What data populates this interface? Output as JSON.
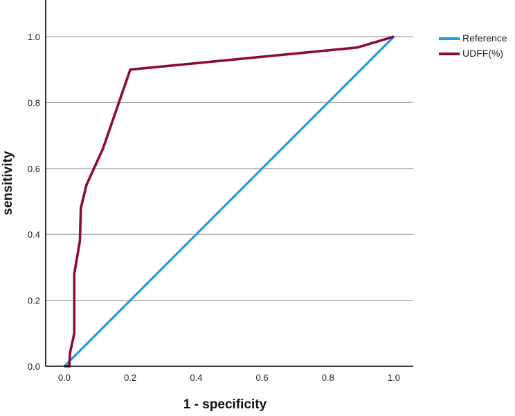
{
  "chart_data": {
    "type": "line",
    "title": "",
    "xlabel": "1 - specificity",
    "ylabel": "sensitivity",
    "xlim": [
      0.0,
      1.0
    ],
    "ylim": [
      0.0,
      1.0
    ],
    "xticks": [
      "0.0",
      "0.2",
      "0.4",
      "0.6",
      "0.8",
      "1.0"
    ],
    "yticks": [
      "0.0",
      "0.2",
      "0.4",
      "0.6",
      "0.8",
      "1.0"
    ],
    "grid": {
      "horizontal": true,
      "vertical": false
    },
    "legend_position": "upper right, outside plot",
    "series": [
      {
        "name": "Reference",
        "color": "#1e9be8",
        "x": [
          0.0,
          1.0
        ],
        "y": [
          0.0,
          1.0
        ]
      },
      {
        "name": "UDFF(%)",
        "color": "#8c0a3a",
        "x": [
          0.0,
          0.015,
          0.017,
          0.03,
          0.03,
          0.047,
          0.05,
          0.067,
          0.117,
          0.2,
          0.889,
          1.0
        ],
        "y": [
          0.0,
          0.0,
          0.04,
          0.1,
          0.28,
          0.38,
          0.48,
          0.55,
          0.66,
          0.9,
          0.967,
          1.0
        ]
      }
    ]
  },
  "colors": {
    "gridline": "#a6a6a6",
    "axis": "#000000",
    "reference": "#1e9be8",
    "udff": "#8c0a3a"
  },
  "legend": {
    "items": [
      {
        "label": "Reference",
        "color": "#1e9be8"
      },
      {
        "label": "UDFF(%)",
        "color": "#8c0a3a"
      }
    ]
  }
}
